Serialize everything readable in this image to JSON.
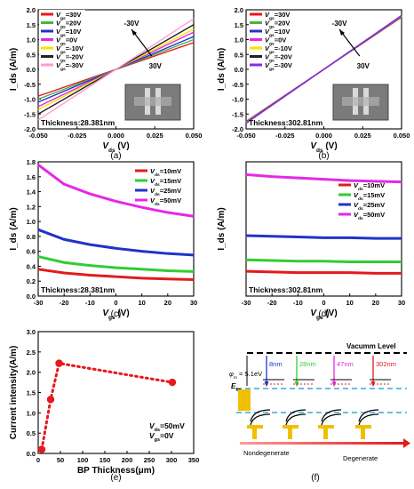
{
  "chart_data": [
    {
      "id": "a",
      "type": "line",
      "caption": "(a)",
      "xlabel": "V_ds (V)",
      "ylabel": "I_ds (A/m)",
      "xlim": [
        -0.05,
        0.05
      ],
      "ylim": [
        -2.0,
        2.0
      ],
      "xticks": [
        "-0.050",
        "-0.025",
        "0.000",
        "0.025",
        "0.050"
      ],
      "yticks": [
        "-2.0",
        "-1.5",
        "-1.0",
        "-0.5",
        "0.0",
        "0.5",
        "1.0",
        "1.5",
        "2.0"
      ],
      "annotation": "Thickness:28.381nm",
      "arrow_labels": [
        "-30V",
        "30V"
      ],
      "legend_position": "top-left",
      "series": [
        {
          "name": "V_gs=30V",
          "color": "#e41a1c",
          "x": [
            -0.05,
            0.05
          ],
          "y": [
            -0.9,
            0.9
          ]
        },
        {
          "name": "V_gs=20V",
          "color": "#4daf4a",
          "x": [
            -0.05,
            0.05
          ],
          "y": [
            -1.0,
            1.0
          ]
        },
        {
          "name": "V_gs=10V",
          "color": "#1f33c9",
          "x": [
            -0.05,
            0.05
          ],
          "y": [
            -1.1,
            1.1
          ]
        },
        {
          "name": "V_gs=0V",
          "color": "#e528e5",
          "x": [
            -0.05,
            0.05
          ],
          "y": [
            -1.25,
            1.25
          ]
        },
        {
          "name": "V_gs=-10V",
          "color": "#f2e600",
          "x": [
            -0.05,
            0.05
          ],
          "y": [
            -1.35,
            1.35
          ]
        },
        {
          "name": "V_gs=-20V",
          "color": "#222222",
          "x": [
            -0.05,
            0.05
          ],
          "y": [
            -1.5,
            1.5
          ]
        },
        {
          "name": "V_gs=-30V",
          "color": "#ff9ad5",
          "x": [
            -0.05,
            0.05
          ],
          "y": [
            -1.7,
            1.7
          ]
        }
      ]
    },
    {
      "id": "b",
      "type": "line",
      "caption": "(b)",
      "xlabel": "V_ds (V)",
      "ylabel": "I_ds (A/m)",
      "xlim": [
        -0.05,
        0.05
      ],
      "ylim": [
        -2.0,
        2.0
      ],
      "xticks": [
        "-0.050",
        "-0.025",
        "0.000",
        "0.025",
        "0.050"
      ],
      "yticks": [
        "-2.0",
        "-1.5",
        "-1.0",
        "-0.5",
        "0.0",
        "0.5",
        "1.0",
        "1.5",
        "2.0"
      ],
      "annotation": "Thickness:302.81nm",
      "arrow_labels": [
        "-30V",
        "30V"
      ],
      "legend_position": "top-left",
      "series": [
        {
          "name": "V_gs=30V",
          "color": "#e41a1c",
          "x": [
            -0.05,
            0.05
          ],
          "y": [
            -1.75,
            1.75
          ]
        },
        {
          "name": "V_gs=20V",
          "color": "#4daf4a",
          "x": [
            -0.05,
            0.05
          ],
          "y": [
            -1.76,
            1.76
          ]
        },
        {
          "name": "V_gs=10V",
          "color": "#1f33c9",
          "x": [
            -0.05,
            0.05
          ],
          "y": [
            -1.77,
            1.77
          ]
        },
        {
          "name": "V_gs=0V",
          "color": "#e528e5",
          "x": [
            -0.05,
            0.05
          ],
          "y": [
            -1.78,
            1.78
          ]
        },
        {
          "name": "V_gs=-10V",
          "color": "#f2e600",
          "x": [
            -0.05,
            0.05
          ],
          "y": [
            -1.79,
            1.79
          ]
        },
        {
          "name": "V_gs=-20V",
          "color": "#222222",
          "x": [
            -0.05,
            0.05
          ],
          "y": [
            -1.8,
            1.8
          ]
        },
        {
          "name": "V_gs=-30V",
          "color": "#8a2be2",
          "x": [
            -0.05,
            0.05
          ],
          "y": [
            -1.81,
            1.81
          ]
        }
      ]
    },
    {
      "id": "c",
      "type": "line",
      "caption": "(c)",
      "xlabel": "V_gs (V)",
      "ylabel": "I_ds (A/m)",
      "xlim": [
        -30,
        30
      ],
      "ylim": [
        0.0,
        1.8
      ],
      "xticks": [
        "-30",
        "-20",
        "-10",
        "0",
        "10",
        "20",
        "30"
      ],
      "yticks": [
        "0.0",
        "0.2",
        "0.4",
        "0.6",
        "0.8",
        "1.0",
        "1.2",
        "1.4",
        "1.6",
        "1.8"
      ],
      "annotation": "Thickness:28.381nm",
      "legend_position": "top-right",
      "series": [
        {
          "name": "V_ds=10mV",
          "color": "#e41a1c",
          "x": [
            -30,
            -20,
            -10,
            0,
            10,
            20,
            30
          ],
          "y": [
            0.36,
            0.31,
            0.28,
            0.26,
            0.24,
            0.23,
            0.22
          ]
        },
        {
          "name": "V_ds=15mV",
          "color": "#33cc33",
          "x": [
            -30,
            -20,
            -10,
            0,
            10,
            20,
            30
          ],
          "y": [
            0.53,
            0.45,
            0.41,
            0.38,
            0.36,
            0.34,
            0.33
          ]
        },
        {
          "name": "V_ds=25mV",
          "color": "#1f33c9",
          "x": [
            -30,
            -20,
            -10,
            0,
            10,
            20,
            30
          ],
          "y": [
            0.89,
            0.76,
            0.69,
            0.64,
            0.6,
            0.57,
            0.55
          ]
        },
        {
          "name": "V_ds=50mV",
          "color": "#e528e5",
          "x": [
            -30,
            -20,
            -10,
            0,
            10,
            20,
            30
          ],
          "y": [
            1.76,
            1.5,
            1.37,
            1.27,
            1.19,
            1.12,
            1.07
          ]
        }
      ]
    },
    {
      "id": "d",
      "type": "line",
      "caption": "(d)",
      "xlabel": "V_gs (V)",
      "ylabel": "I_ds (A/m)",
      "xlim": [
        -30,
        30
      ],
      "ylim": [
        0.0,
        2.0
      ],
      "xticks": [
        "-30",
        "-20",
        "-10",
        "0",
        "10",
        "20",
        "30"
      ],
      "yticks": [],
      "annotation": "Thickness:302.81nm",
      "legend_position": "right",
      "series": [
        {
          "name": "V_ds=10mV",
          "color": "#e41a1c",
          "x": [
            -30,
            -20,
            -10,
            0,
            10,
            20,
            30
          ],
          "y": [
            0.37,
            0.36,
            0.35,
            0.35,
            0.35,
            0.34,
            0.34
          ]
        },
        {
          "name": "V_ds=15mV",
          "color": "#33cc33",
          "x": [
            -30,
            -20,
            -10,
            0,
            10,
            20,
            30
          ],
          "y": [
            0.54,
            0.53,
            0.52,
            0.52,
            0.51,
            0.51,
            0.51
          ]
        },
        {
          "name": "V_ds=25mV",
          "color": "#1f33c9",
          "x": [
            -30,
            -20,
            -10,
            0,
            10,
            20,
            30
          ],
          "y": [
            0.9,
            0.89,
            0.88,
            0.87,
            0.87,
            0.86,
            0.86
          ]
        },
        {
          "name": "V_ds=50mV",
          "color": "#e528e5",
          "x": [
            -30,
            -20,
            -10,
            0,
            10,
            20,
            30
          ],
          "y": [
            1.81,
            1.78,
            1.76,
            1.74,
            1.72,
            1.71,
            1.7
          ]
        }
      ]
    },
    {
      "id": "e",
      "type": "scatter",
      "caption": "(e)",
      "xlabel": "BP Thickness(μm)",
      "ylabel": "Current intensity(A/m)",
      "xlim": [
        0,
        350
      ],
      "ylim": [
        0.0,
        3.0
      ],
      "xticks": [
        "0",
        "50",
        "100",
        "150",
        "200",
        "250",
        "300",
        "350"
      ],
      "yticks": [
        "0.0",
        "0.5",
        "1.0",
        "1.5",
        "2.0",
        "2.5",
        "3.0"
      ],
      "annotation": [
        "V_ds=50mV",
        "V_gs=0V"
      ],
      "color": "#e41a1c",
      "x": [
        8,
        28,
        47,
        302
      ],
      "y": [
        0.1,
        1.33,
        2.22,
        1.75
      ]
    }
  ],
  "diagram_f": {
    "caption": "(f)",
    "vacuum_label": "Vacumm Level",
    "phi_label": "φ_m = 5.1eV",
    "fermi_label": "E_fm",
    "thickness_labels": [
      "8nm",
      "28nm",
      "47nm",
      "302nm"
    ],
    "thickness_colors": [
      "#1f33c9",
      "#33cc33",
      "#e528e5",
      "#e41a1c"
    ],
    "bottom_left": "Nondegenerate",
    "bottom_right": "Degenerate"
  }
}
